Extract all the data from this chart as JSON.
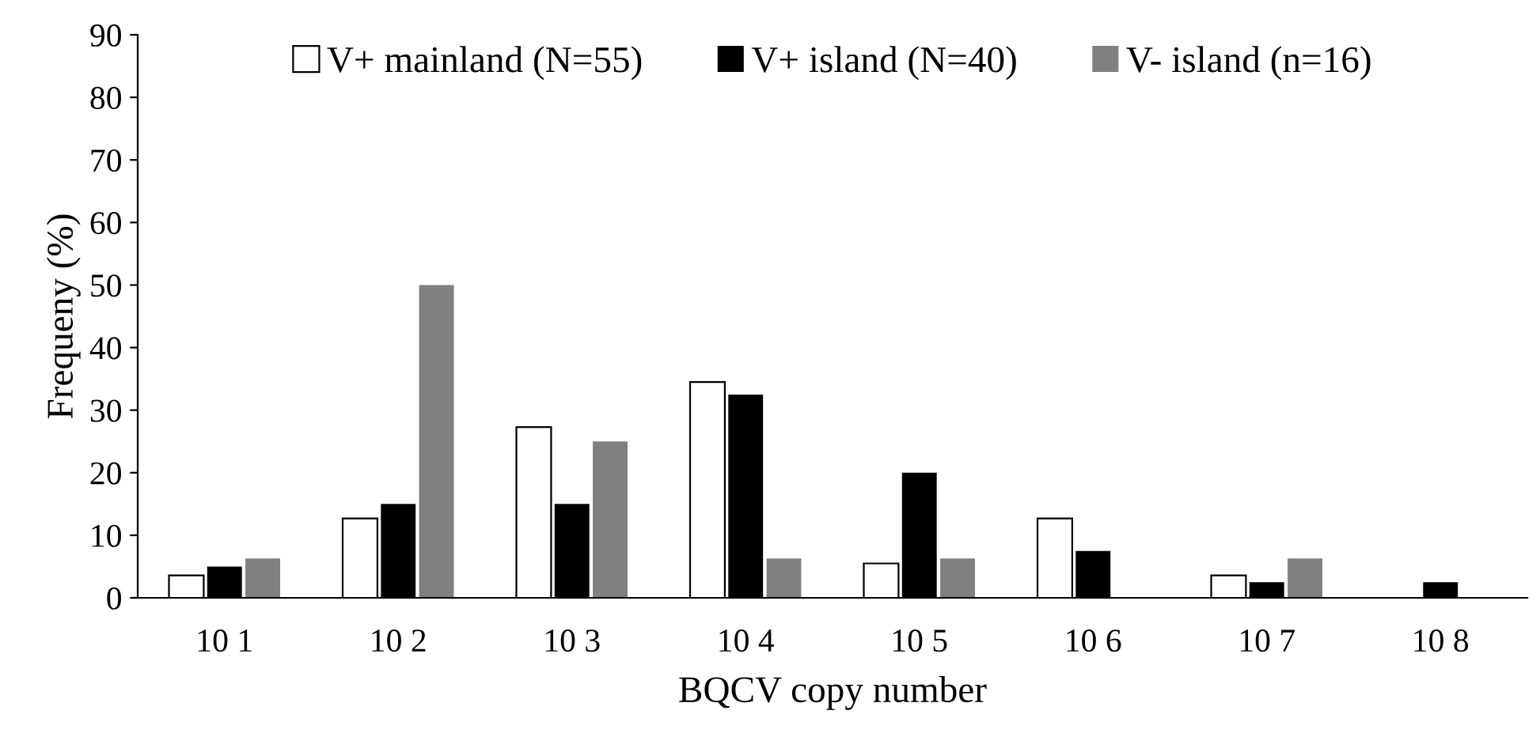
{
  "chart_data": {
    "type": "bar",
    "xlabel": "BQCV copy number",
    "ylabel": "Frequeny (%)",
    "categories": [
      "10 1",
      "10 2",
      "10 3",
      "10 4",
      "10 5",
      "10 6",
      "10 7",
      "10 8"
    ],
    "series": [
      {
        "name": "V+ mainland (N=55)",
        "color": "#ffffff",
        "values": [
          3.6,
          12.7,
          27.3,
          34.5,
          5.5,
          12.7,
          3.6,
          null
        ]
      },
      {
        "name": "V+ island (N=40)",
        "color": "#000000",
        "values": [
          5,
          15,
          15,
          32.5,
          20,
          7.5,
          2.5,
          2.5
        ]
      },
      {
        "name": "V- island (n=16)",
        "color": "#808080",
        "values": [
          6.3,
          50,
          25,
          6.3,
          6.3,
          null,
          6.3,
          null
        ]
      }
    ],
    "ylim": [
      0,
      90
    ],
    "yticks": [
      0,
      10,
      20,
      30,
      40,
      50,
      60,
      70,
      80,
      90
    ],
    "grid": false,
    "legend": "top"
  }
}
